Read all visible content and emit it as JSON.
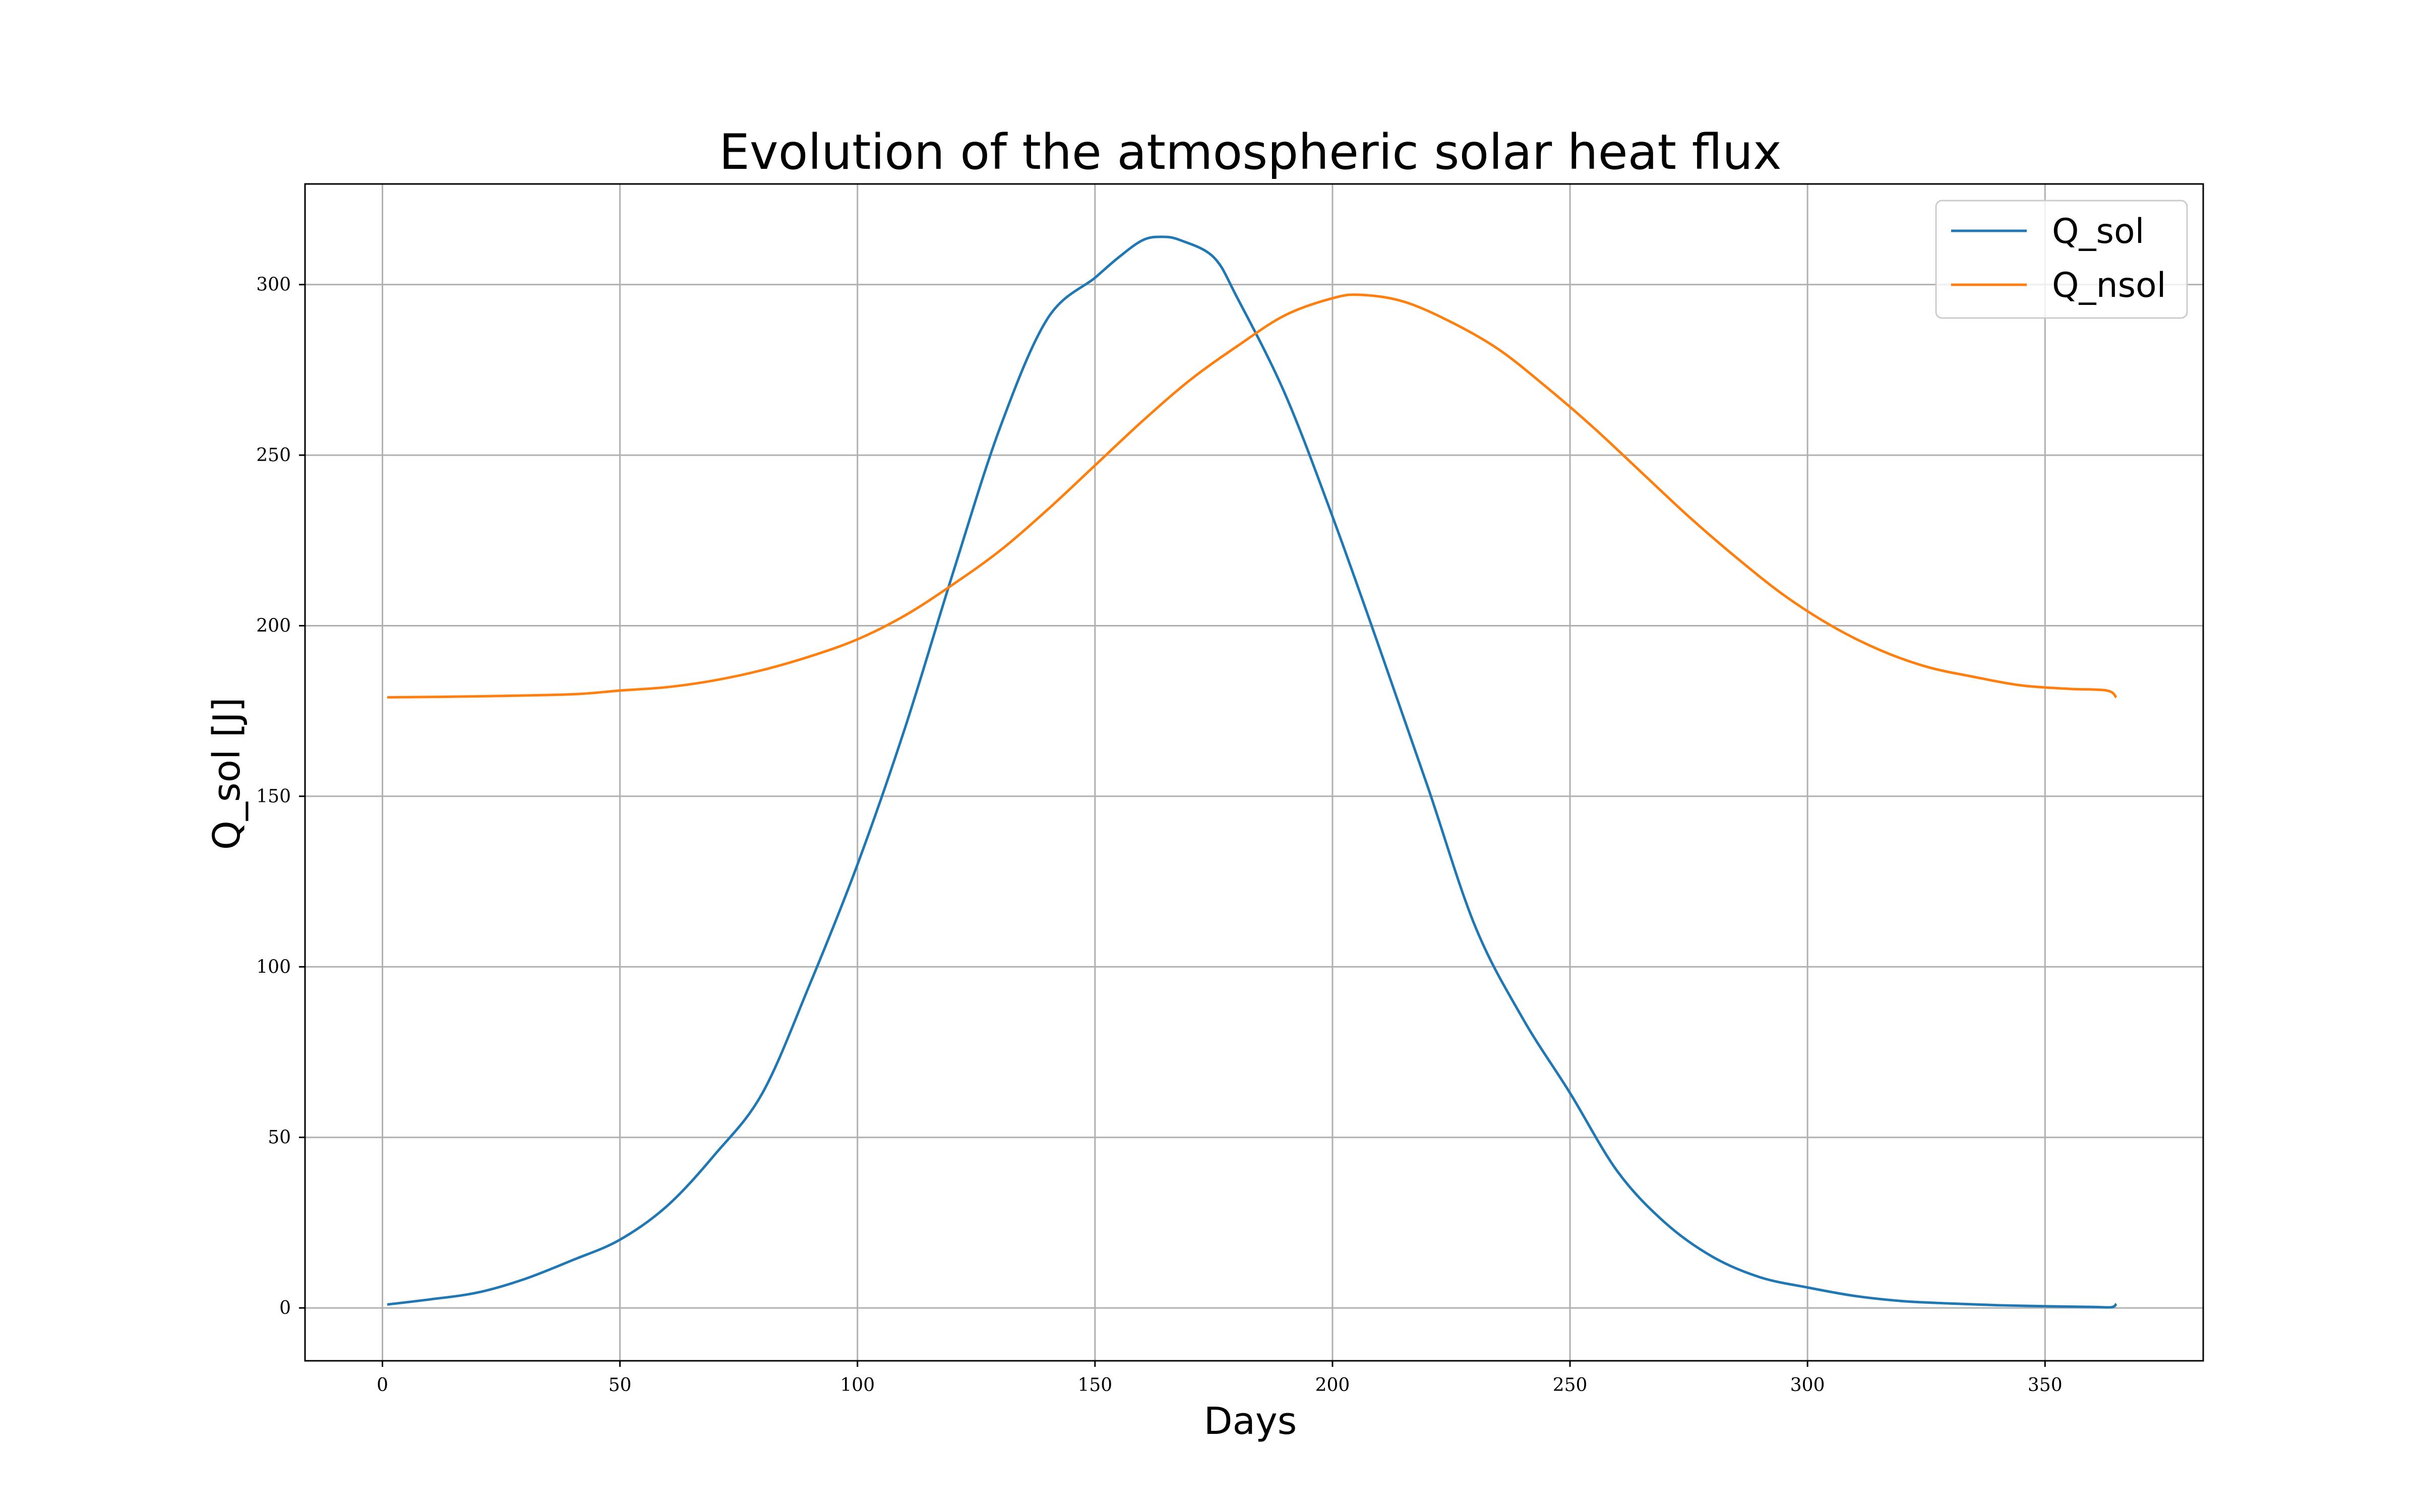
{
  "chart_data": {
    "type": "line",
    "title": "Evolution of the atmospheric solar heat flux",
    "xlabel": "Days",
    "ylabel": "Q_sol [J]",
    "xlim": [
      -16.3,
      383.3
    ],
    "ylim": [
      -15.5,
      329.5
    ],
    "xticks": [
      0,
      50,
      100,
      150,
      200,
      250,
      300,
      350
    ],
    "yticks": [
      0,
      50,
      100,
      150,
      200,
      250,
      300
    ],
    "grid": true,
    "legend_position": "top-right",
    "series": [
      {
        "name": "Q_sol",
        "color": "#1f77b4",
        "x": [
          1,
          10,
          20,
          30,
          40,
          50,
          60,
          70,
          80,
          90,
          100,
          110,
          120,
          130,
          140,
          150,
          155,
          160,
          164,
          168,
          175,
          180,
          190,
          200,
          210,
          220,
          230,
          240,
          250,
          260,
          270,
          280,
          290,
          300,
          310,
          320,
          330,
          340,
          350,
          360,
          364,
          365
        ],
        "y": [
          1,
          2.5,
          4.5,
          8.5,
          14,
          20,
          30,
          45,
          63,
          95,
          130,
          170,
          215,
          258,
          290,
          302,
          308,
          313,
          314,
          313,
          308,
          296,
          268,
          232,
          193,
          153,
          112,
          85,
          63,
          40,
          25,
          15,
          9,
          6,
          3.5,
          2,
          1.3,
          0.8,
          0.5,
          0.3,
          0.2,
          1.2
        ]
      },
      {
        "name": "Q_nsol",
        "color": "#ff7f0e",
        "x": [
          1,
          20,
          40,
          50,
          60,
          70,
          80,
          90,
          100,
          110,
          120,
          130,
          140,
          150,
          160,
          170,
          180,
          190,
          200,
          206,
          215,
          225,
          235,
          245,
          255,
          265,
          275,
          285,
          295,
          305,
          315,
          325,
          335,
          345,
          355,
          363,
          365
        ],
        "y": [
          179,
          179.3,
          179.9,
          181,
          182,
          184,
          187,
          191,
          196,
          203,
          212,
          222,
          234,
          247,
          260,
          272,
          282,
          291,
          296,
          297,
          295,
          289,
          281,
          270,
          258,
          245,
          232,
          220,
          209,
          200,
          193,
          188,
          185,
          182.5,
          181.5,
          181,
          179
        ]
      }
    ]
  }
}
